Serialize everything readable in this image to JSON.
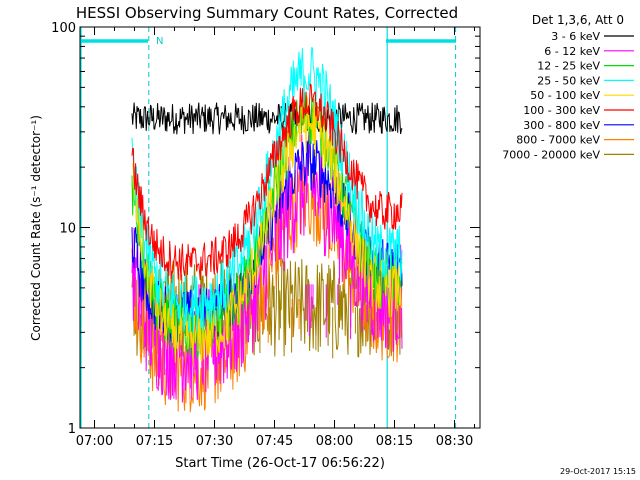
{
  "chart_data": {
    "type": "line",
    "title": "HESSI Observing Summary Count Rates, Corrected",
    "xlabel": "Start Time (26-Oct-17 06:56:22)",
    "ylabel": "Corrected Count Rate (s⁻¹ detector⁻¹)",
    "y_scale": "log",
    "ylim": [
      1,
      100
    ],
    "xlim_minutes": [
      0,
      100
    ],
    "x_ticks": [
      {
        "label": "07:00",
        "minute": 3.63
      },
      {
        "label": "07:15",
        "minute": 18.63
      },
      {
        "label": "07:30",
        "minute": 33.63
      },
      {
        "label": "07:45",
        "minute": 48.63
      },
      {
        "label": "08:00",
        "minute": 63.63
      },
      {
        "label": "08:15",
        "minute": 78.63
      },
      {
        "label": "08:30",
        "minute": 93.63
      }
    ],
    "y_ticks": [
      {
        "label": "100",
        "value": 100
      },
      {
        "label": "10",
        "value": 10
      },
      {
        "label": "1",
        "value": 1
      }
    ],
    "legend_header": "Det 1,3,6, Att 0",
    "legend_position": "top-right",
    "annotation_n": "N",
    "timestamp": "29-Oct-2017 15:15",
    "data_start_minute": 13,
    "data_end_minute": 80.5,
    "night_bars": [
      {
        "label": "night-bar-left",
        "start": 0,
        "end": 17
      },
      {
        "label": "night-bar-right",
        "start": 76.5,
        "end": 94
      }
    ],
    "saa_lines": [
      {
        "name": "saa-line-left",
        "minute": 17.2
      },
      {
        "name": "saa-line-right",
        "minute": 93.9
      }
    ],
    "eclipse_line_minute": 76.8,
    "peak_minute": 57,
    "series": [
      {
        "name": "3 - 6 keV",
        "color": "#000000",
        "x": [
          13,
          80.5
        ],
        "y": [
          35,
          35
        ],
        "shape": "flat",
        "noise": 0.08
      },
      {
        "name": "6 - 12 keV",
        "color": "#ff00ff",
        "x": [
          13,
          57,
          80.5
        ],
        "y": [
          6.5,
          16,
          4.5
        ],
        "shape": "hump",
        "noise": 0.28
      },
      {
        "name": "12 - 25 keV",
        "color": "#00dd00",
        "x": [
          13,
          57,
          80.5
        ],
        "y": [
          17,
          36,
          5.5
        ],
        "shape": "hump",
        "noise": 0.15
      },
      {
        "name": "25 - 50 keV",
        "color": "#00ffff",
        "x": [
          13,
          57,
          80.5
        ],
        "y": [
          20,
          60,
          7.5
        ],
        "shape": "hump",
        "noise": 0.15
      },
      {
        "name": "50 - 100 keV",
        "color": "#ffd700",
        "x": [
          13,
          57,
          80.5
        ],
        "y": [
          18,
          33,
          5
        ],
        "shape": "hump",
        "noise": 0.15
      },
      {
        "name": "100 - 300 keV",
        "color": "#ff0000",
        "x": [
          13,
          57,
          80.5
        ],
        "y": [
          22,
          42,
          12
        ],
        "shape": "hump",
        "noise": 0.1
      },
      {
        "name": "300 - 800 keV",
        "color": "#0000ff",
        "x": [
          13,
          57,
          80.5
        ],
        "y": [
          9,
          21,
          6.5
        ],
        "shape": "hump",
        "noise": 0.14
      },
      {
        "name": "800 - 7000 keV",
        "color": "#ff8000",
        "x": [
          13,
          57,
          80.5
        ],
        "y": [
          5.5,
          14,
          3.5
        ],
        "shape": "hump",
        "noise": 0.22
      },
      {
        "name": "7000 - 20000 keV",
        "color": "#a08000",
        "x": [
          13,
          80.5
        ],
        "y": [
          4,
          4
        ],
        "shape": "flat",
        "noise": 0.25
      }
    ]
  }
}
